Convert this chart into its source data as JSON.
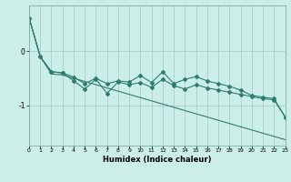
{
  "xlabel": "Humidex (Indice chaleur)",
  "bg_color": "#cceee8",
  "line_color": "#2e7d6e",
  "grid_color": "#aacfcc",
  "line1_y": [
    0.62,
    -0.1,
    -0.38,
    -0.4,
    -0.48,
    -0.6,
    -0.5,
    -0.6,
    -0.55,
    -0.57,
    -0.45,
    -0.58,
    -0.38,
    -0.6,
    -0.52,
    -0.47,
    -0.55,
    -0.6,
    -0.65,
    -0.72,
    -0.82,
    -0.85,
    -0.88,
    -1.22
  ],
  "line2_y": [
    0.62,
    -0.1,
    -0.38,
    -0.4,
    -0.55,
    -0.7,
    -0.52,
    -0.78,
    -0.57,
    -0.62,
    -0.58,
    -0.67,
    -0.52,
    -0.64,
    -0.7,
    -0.62,
    -0.68,
    -0.72,
    -0.76,
    -0.8,
    -0.84,
    -0.88,
    -0.9,
    -1.22
  ],
  "line3_y": [
    0.62,
    -0.1,
    -0.42,
    -0.44,
    -0.5,
    -0.56,
    -0.62,
    -0.68,
    -0.74,
    -0.8,
    -0.86,
    -0.92,
    -0.98,
    -1.04,
    -1.1,
    -1.16,
    -1.22,
    -1.28,
    -1.34,
    -1.4,
    -1.46,
    -1.52,
    -1.58,
    -1.64
  ],
  "x": [
    0,
    1,
    2,
    3,
    4,
    5,
    6,
    7,
    8,
    9,
    10,
    11,
    12,
    13,
    14,
    15,
    16,
    17,
    18,
    19,
    20,
    21,
    22,
    23
  ],
  "ylim": [
    -1.75,
    0.85
  ],
  "xlim": [
    0,
    23
  ],
  "yticks": [
    0,
    -1
  ],
  "xticks": [
    0,
    1,
    2,
    3,
    4,
    5,
    6,
    7,
    8,
    9,
    10,
    11,
    12,
    13,
    14,
    15,
    16,
    17,
    18,
    19,
    20,
    21,
    22,
    23
  ]
}
